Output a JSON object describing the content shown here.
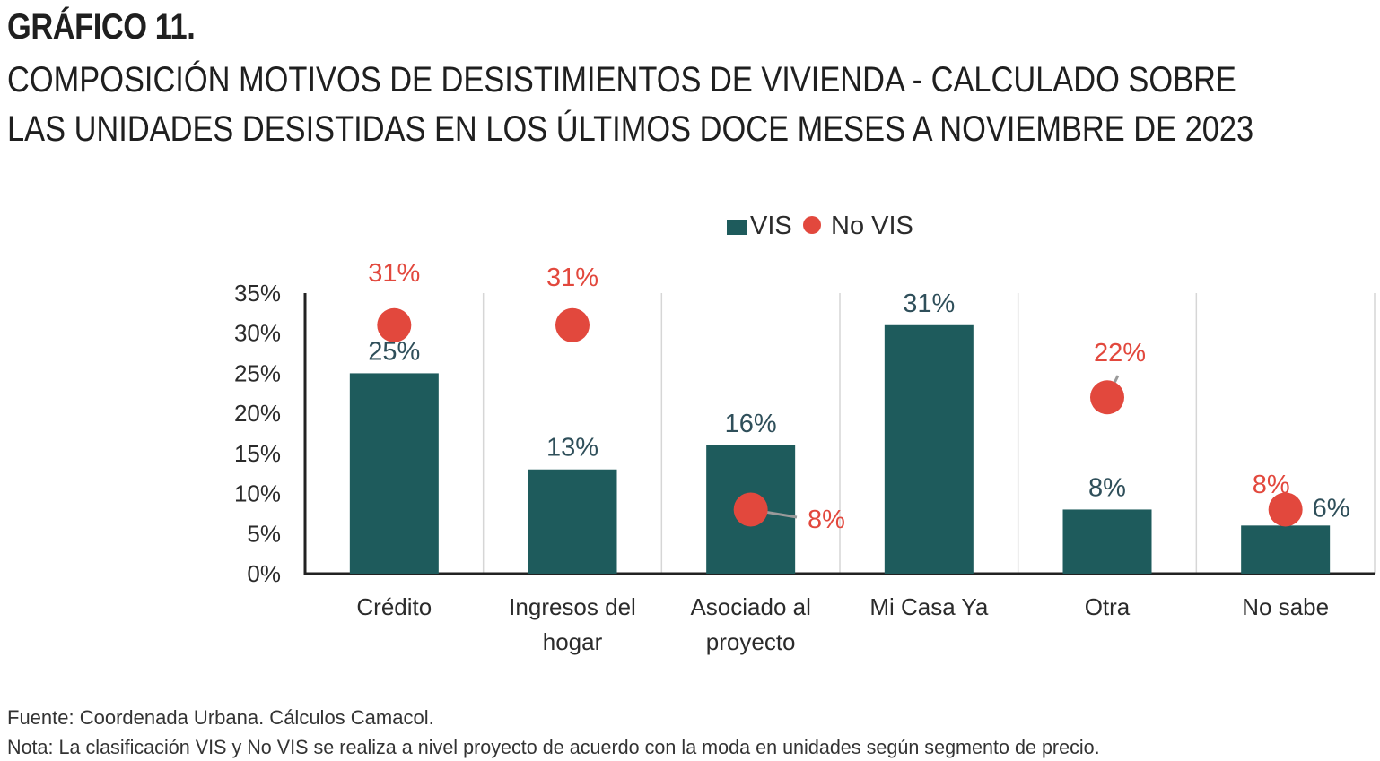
{
  "header": {
    "label": "GRÁFICO 11.",
    "title_lines": [
      "COMPOSICIÓN MOTIVOS DE DESISTIMIENTOS DE VIVIENDA - CALCULADO SOBRE",
      "LAS UNIDADES DESISTIDAS EN LOS ÚLTIMOS DOCE MESES A NOVIEMBRE DE 2023"
    ]
  },
  "chart_data": {
    "type": "bar",
    "categories": [
      [
        "Crédito"
      ],
      [
        "Ingresos del",
        "hogar"
      ],
      [
        "Asociado al",
        "proyecto"
      ],
      [
        "Mi Casa Ya"
      ],
      [
        "Otra"
      ],
      [
        "No sabe"
      ]
    ],
    "series": [
      {
        "name": "VIS",
        "kind": "bar",
        "color": "#1e5b5c",
        "label_color": "#2f4f5a",
        "values": [
          25,
          13,
          16,
          31,
          8,
          6
        ],
        "labels": [
          "25%",
          "13%",
          "16%",
          "31%",
          "8%",
          "6%"
        ]
      },
      {
        "name": "No VIS",
        "kind": "marker",
        "color": "#e2483d",
        "label_color": "#e2483d",
        "values": [
          31,
          31,
          8,
          null,
          22,
          8
        ],
        "labels": [
          "31%",
          "31%",
          "8%",
          "",
          "22%",
          "8%"
        ]
      }
    ],
    "ylim": [
      0,
      35
    ],
    "yticks": [
      "0%",
      "5%",
      "10%",
      "15%",
      "20%",
      "25%",
      "30%",
      "35%"
    ],
    "grid": "vertical",
    "legend": "top-center"
  },
  "footer": {
    "source": "Fuente: Coordenada Urbana. Cálculos Camacol.",
    "note": "Nota: La clasificación VIS y No VIS se realiza a nivel proyecto de acuerdo con la moda en unidades según segmento de precio."
  }
}
